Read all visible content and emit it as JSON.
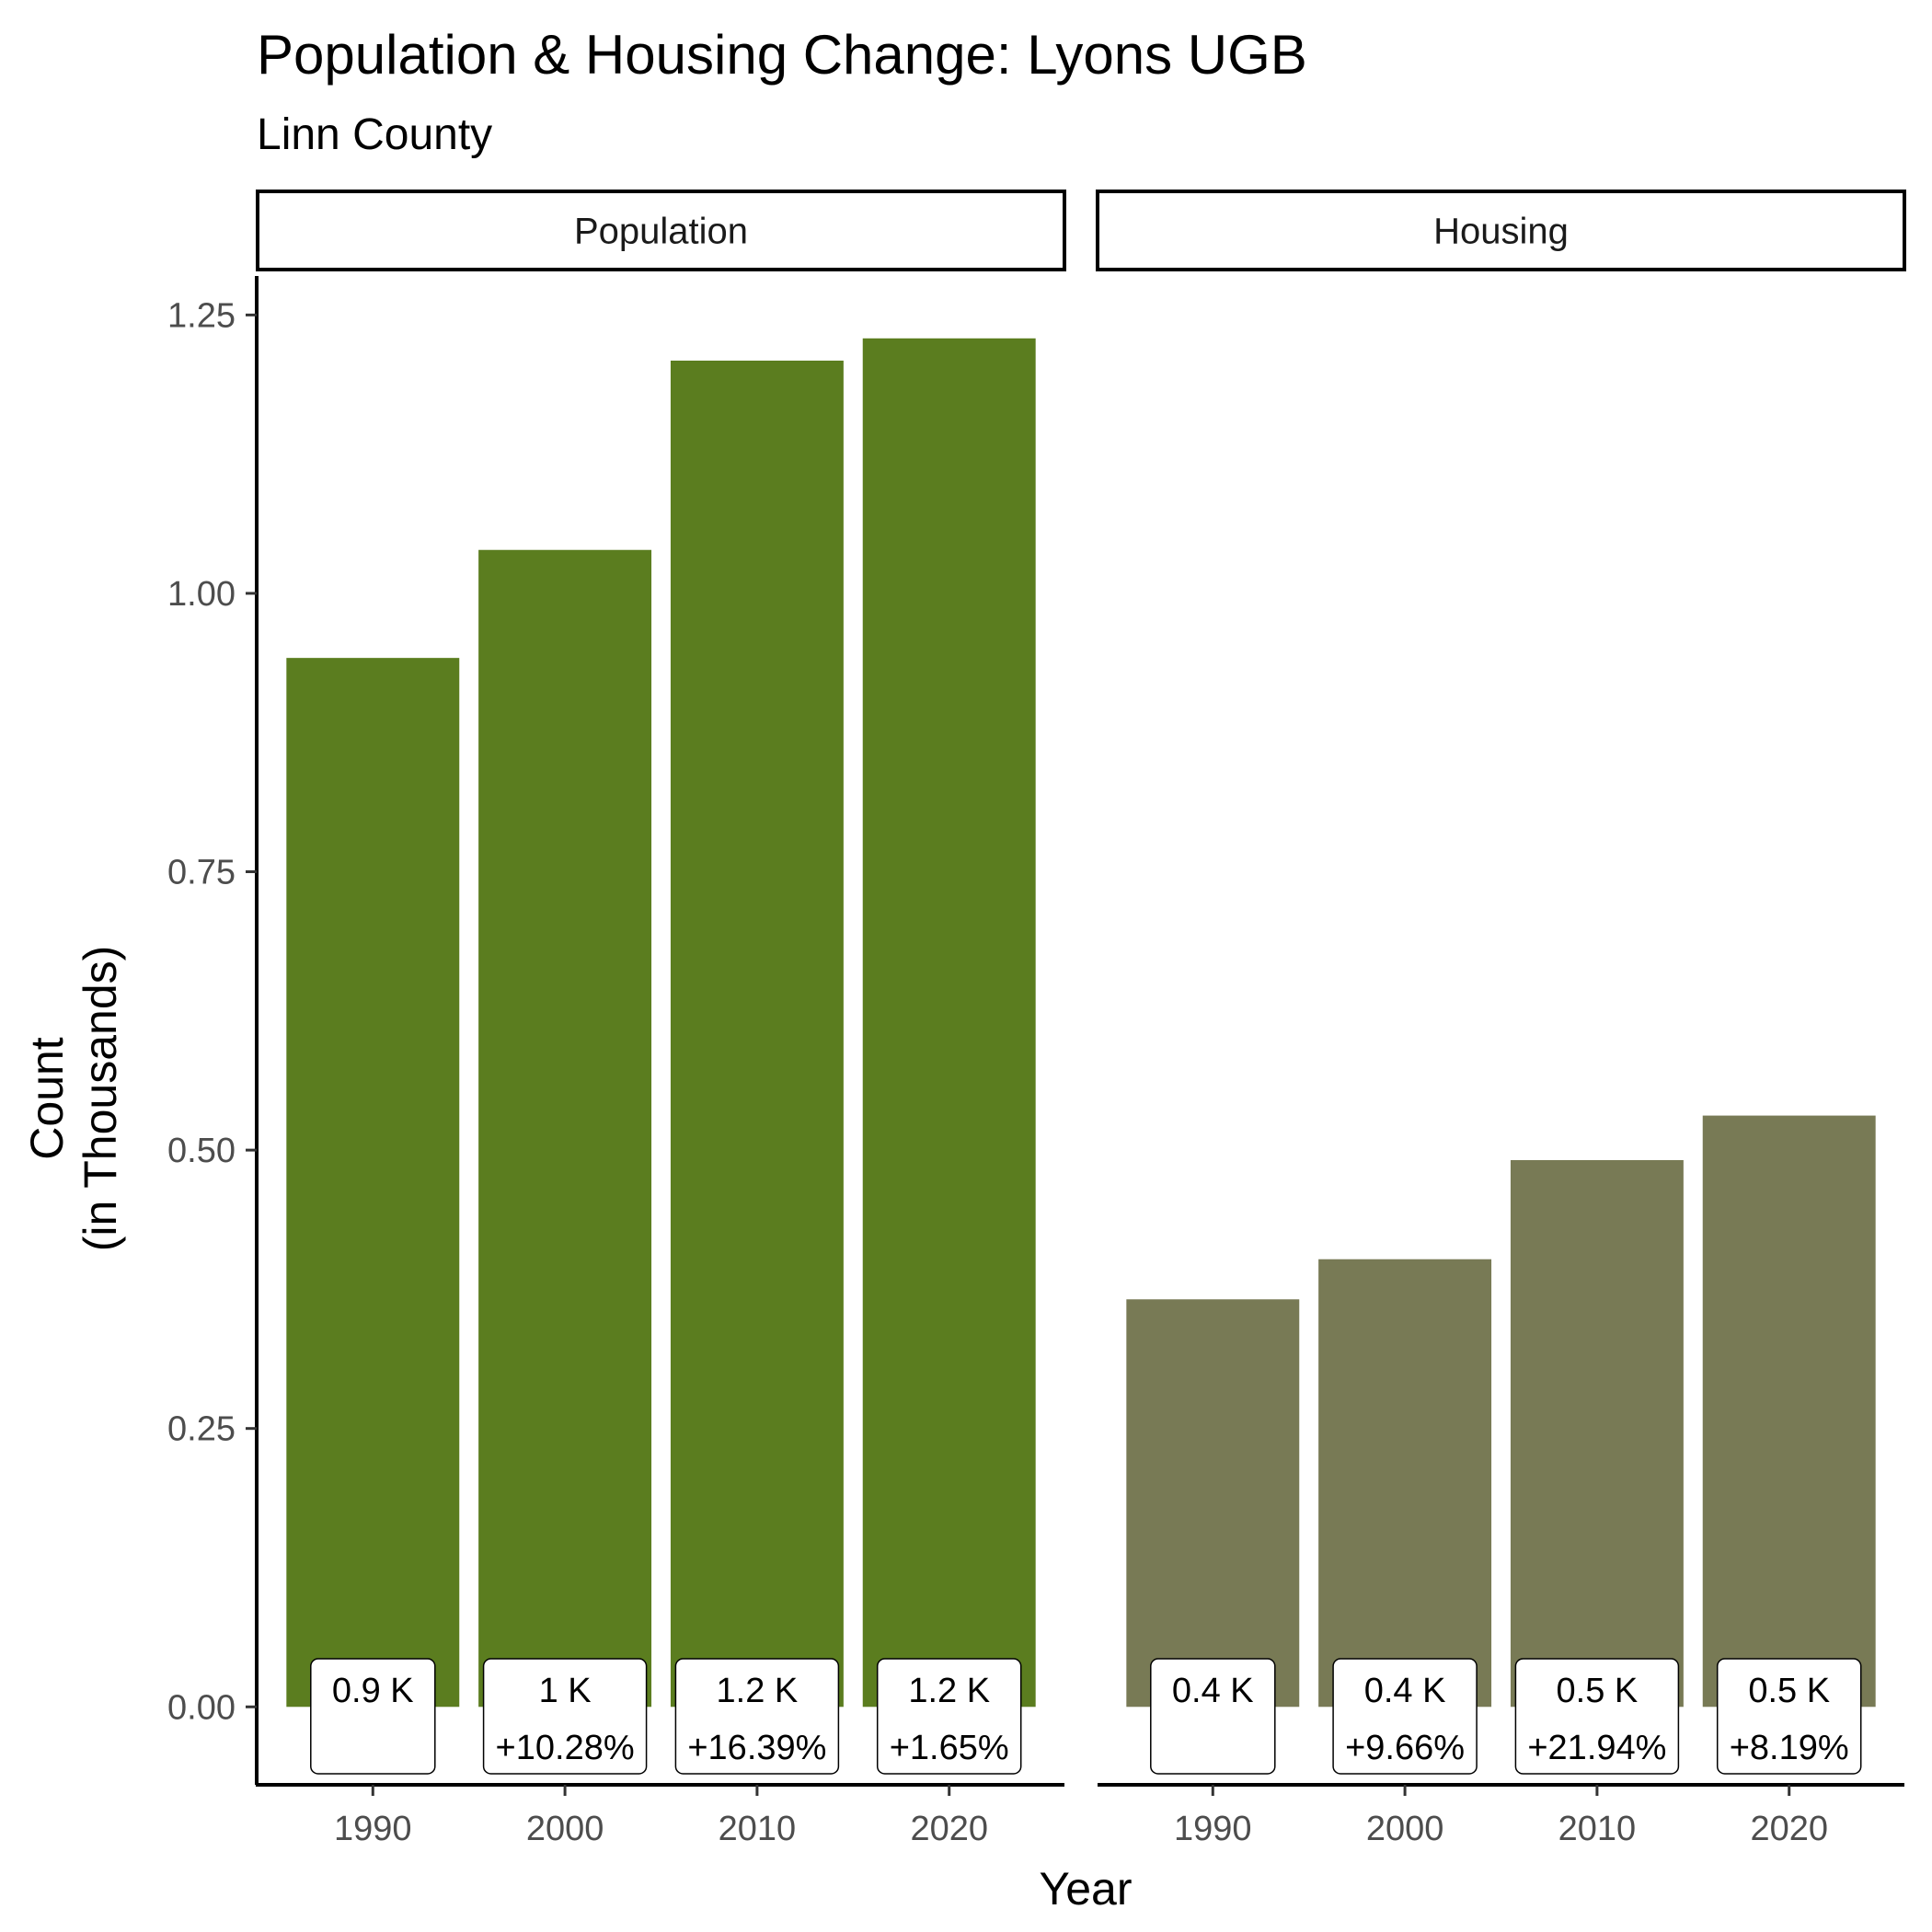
{
  "chart_data": {
    "type": "bar",
    "title": "Population & Housing Change: Lyons UGB",
    "subtitle": "Linn County",
    "xlabel": "Year",
    "ylabel_lines": [
      "Count",
      "(in Thousands)"
    ],
    "ylim": [
      0,
      1.25
    ],
    "yticks": [
      "0.00",
      "0.25",
      "0.50",
      "0.75",
      "1.00",
      "1.25"
    ],
    "categories": [
      "1990",
      "2000",
      "2010",
      "2020"
    ],
    "grid": false,
    "legend": "none",
    "panels": [
      {
        "name": "Population",
        "color": "#5b7d1f",
        "values": [
          0.942,
          1.039,
          1.209,
          1.229
        ],
        "value_labels": [
          "0.9 K",
          "1 K",
          "1.2 K",
          "1.2 K"
        ],
        "change_labels": [
          "",
          "+10.28%",
          "+16.39%",
          "+1.65%"
        ]
      },
      {
        "name": "Housing",
        "color": "#787a55",
        "values": [
          0.366,
          0.402,
          0.491,
          0.531
        ],
        "value_labels": [
          "0.4 K",
          "0.4 K",
          "0.5 K",
          "0.5 K"
        ],
        "change_labels": [
          "",
          "+9.66%",
          "+21.94%",
          "+8.19%"
        ]
      }
    ]
  }
}
